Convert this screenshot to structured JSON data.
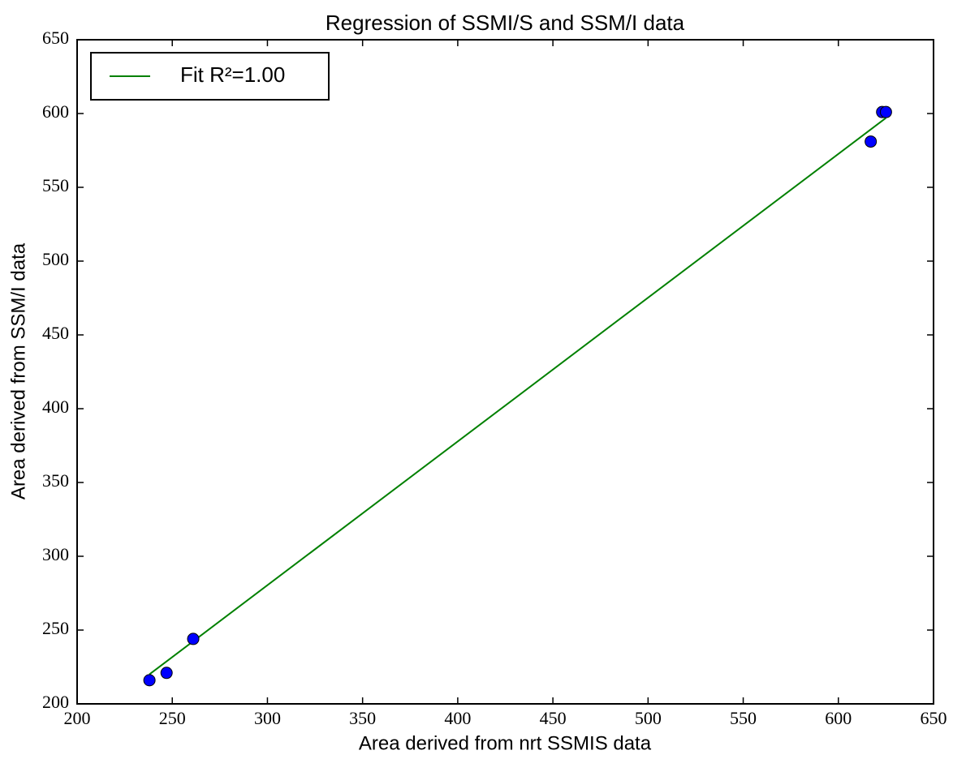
{
  "chart_data": {
    "type": "scatter",
    "title": "Regression of SSMI/S and SSM/I data",
    "x_label": "Area derived from nrt SSMIS data",
    "y_label": "Area derived from SSM/I data",
    "xlim": [
      200,
      650
    ],
    "ylim": [
      200,
      650
    ],
    "xticks": [
      200,
      250,
      300,
      350,
      400,
      450,
      500,
      550,
      600,
      650
    ],
    "yticks": [
      200,
      250,
      300,
      350,
      400,
      450,
      500,
      550,
      600,
      650
    ],
    "points": {
      "color": "#0000ff",
      "x": [
        238,
        247,
        261,
        617,
        623,
        625
      ],
      "values": [
        216,
        221,
        244,
        581,
        601,
        601
      ]
    },
    "series": [
      {
        "name": "Fit R²=1.00",
        "color": "#008000",
        "x": [
          238,
          625
        ],
        "values": [
          220,
          597
        ]
      }
    ],
    "legend": "upper left"
  }
}
